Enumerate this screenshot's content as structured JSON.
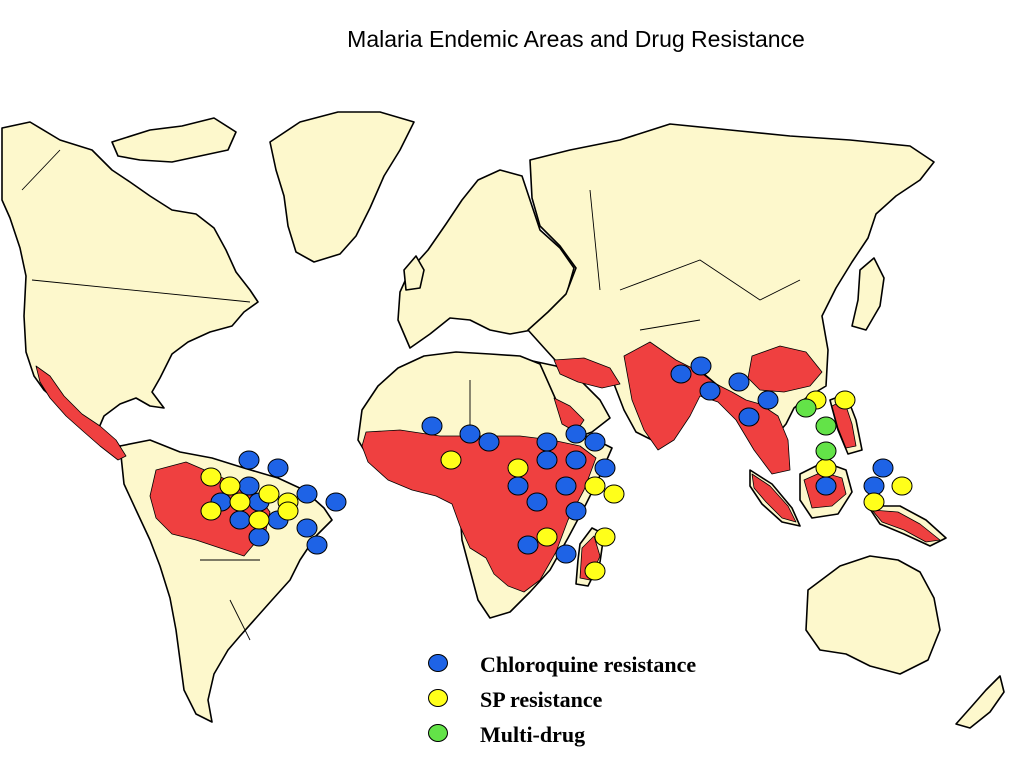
{
  "title": "Malaria Endemic Areas and Drug Resistance",
  "colors": {
    "land": "#fdf8cc",
    "endemic": "#ef4040",
    "chloroquine": "#1e63e6",
    "sp": "#ffff1a",
    "multidrug": "#63e348"
  },
  "legend": {
    "items": [
      {
        "key": "chloroquine",
        "label": "Chloroquine resistance"
      },
      {
        "key": "sp",
        "label": "SP resistance"
      },
      {
        "key": "multidrug",
        "label": "Multi-drug"
      }
    ]
  },
  "map_layers": [
    "land-masses",
    "malaria-endemic-areas",
    "drug-resistance-markers"
  ]
}
